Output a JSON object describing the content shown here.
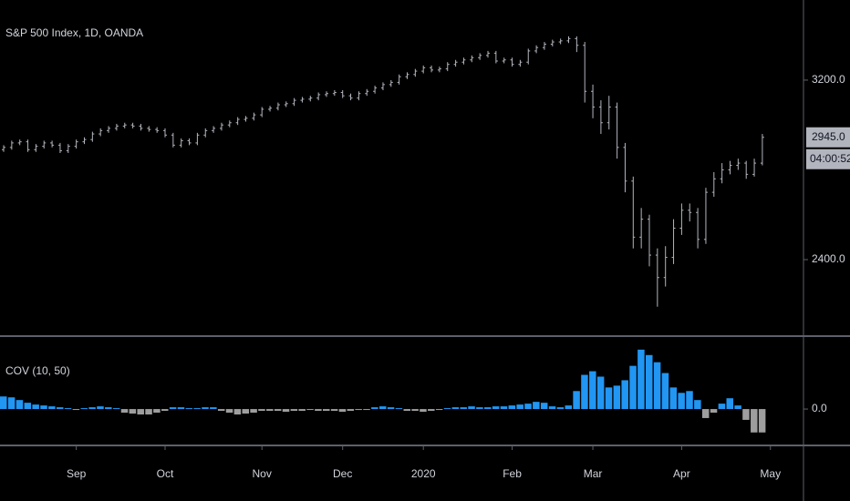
{
  "chart_data": [
    {
      "type": "ohlc",
      "title": "S&P 500 Index, 1D, OANDA",
      "color": "#b2b5be",
      "categories": [
        null,
        null,
        null,
        null,
        null,
        null,
        null,
        null,
        null,
        "Sep",
        null,
        null,
        null,
        null,
        null,
        null,
        null,
        null,
        null,
        null,
        "Oct",
        null,
        null,
        null,
        null,
        null,
        null,
        null,
        null,
        null,
        null,
        null,
        "Nov",
        null,
        null,
        null,
        null,
        null,
        null,
        null,
        null,
        null,
        "Dec",
        null,
        null,
        null,
        null,
        null,
        null,
        null,
        null,
        null,
        "2020",
        null,
        null,
        null,
        null,
        null,
        null,
        null,
        null,
        null,
        null,
        "Feb",
        null,
        null,
        null,
        null,
        null,
        null,
        null,
        null,
        null,
        "Mar",
        null,
        null,
        null,
        null,
        null,
        null,
        null,
        null,
        null,
        null,
        "Apr",
        null,
        null,
        null,
        null,
        null,
        null,
        null,
        null,
        null,
        null,
        "May"
      ],
      "open": [
        2890,
        2900,
        2920,
        2925,
        2890,
        2905,
        2920,
        2910,
        2885,
        2905,
        2925,
        2935,
        2960,
        2975,
        2985,
        2995,
        3000,
        2995,
        2985,
        2980,
        2975,
        2955,
        2910,
        2930,
        2920,
        2955,
        2975,
        2985,
        3000,
        3010,
        3025,
        3030,
        3045,
        3070,
        3075,
        3090,
        3095,
        3110,
        3115,
        3120,
        3135,
        3140,
        3145,
        3130,
        3120,
        3140,
        3150,
        3165,
        3180,
        3190,
        3215,
        3225,
        3240,
        3255,
        3245,
        3250,
        3270,
        3280,
        3290,
        3300,
        3310,
        3320,
        3285,
        3290,
        3270,
        3280,
        3330,
        3345,
        3360,
        3370,
        3375,
        3385,
        3355,
        3150,
        3080,
        3010,
        3080,
        2900,
        2750,
        2500,
        2580,
        2420,
        2320,
        2410,
        2540,
        2620,
        2610,
        2490,
        2700,
        2760,
        2800,
        2820,
        2830,
        2780,
        2830,
        null
      ],
      "high": [
        2910,
        2930,
        2935,
        2935,
        2915,
        2930,
        2930,
        2920,
        2915,
        2935,
        2945,
        2970,
        2985,
        2995,
        3005,
        3010,
        3010,
        3005,
        2995,
        2990,
        2985,
        2965,
        2940,
        2940,
        2965,
        2985,
        2995,
        3010,
        3020,
        3035,
        3040,
        3055,
        3080,
        3085,
        3100,
        3105,
        3120,
        3125,
        3130,
        3145,
        3150,
        3155,
        3155,
        3140,
        3150,
        3160,
        3175,
        3190,
        3200,
        3225,
        3235,
        3250,
        3265,
        3265,
        3260,
        3280,
        3290,
        3300,
        3310,
        3320,
        3330,
        3330,
        3300,
        3300,
        3290,
        3340,
        3355,
        3370,
        3380,
        3385,
        3395,
        3395,
        3370,
        3180,
        3110,
        3130,
        3100,
        2920,
        2770,
        2630,
        2600,
        2450,
        2460,
        2580,
        2650,
        2650,
        2630,
        2720,
        2790,
        2830,
        2840,
        2850,
        2840,
        2850,
        2960,
        null
      ],
      "low": [
        2880,
        2890,
        2910,
        2880,
        2880,
        2895,
        2900,
        2875,
        2875,
        2895,
        2915,
        2925,
        2950,
        2965,
        2975,
        2985,
        2985,
        2975,
        2970,
        2965,
        2945,
        2900,
        2900,
        2910,
        2910,
        2945,
        2965,
        2975,
        2990,
        3000,
        3015,
        3020,
        3035,
        3060,
        3065,
        3080,
        3085,
        3100,
        3105,
        3110,
        3125,
        3130,
        3120,
        3110,
        3110,
        3130,
        3140,
        3155,
        3170,
        3180,
        3205,
        3215,
        3230,
        3235,
        3235,
        3240,
        3260,
        3270,
        3280,
        3290,
        3300,
        3275,
        3275,
        3260,
        3260,
        3270,
        3320,
        3335,
        3350,
        3360,
        3365,
        3325,
        3100,
        3030,
        2960,
        2980,
        2850,
        2700,
        2450,
        2450,
        2370,
        2190,
        2280,
        2380,
        2510,
        2570,
        2450,
        2470,
        2680,
        2740,
        2780,
        2800,
        2760,
        2770,
        2820,
        null
      ],
      "close": [
        2900,
        2920,
        2925,
        2890,
        2905,
        2920,
        2910,
        2885,
        2905,
        2925,
        2935,
        2960,
        2975,
        2985,
        2995,
        3000,
        2995,
        2985,
        2980,
        2975,
        2955,
        2910,
        2930,
        2920,
        2955,
        2975,
        2985,
        3000,
        3010,
        3025,
        3030,
        3045,
        3070,
        3075,
        3090,
        3095,
        3110,
        3115,
        3120,
        3135,
        3140,
        3145,
        3130,
        3120,
        3140,
        3150,
        3165,
        3180,
        3190,
        3215,
        3225,
        3240,
        3255,
        3245,
        3250,
        3270,
        3280,
        3290,
        3300,
        3310,
        3320,
        3285,
        3290,
        3270,
        3280,
        3330,
        3345,
        3360,
        3370,
        3375,
        3385,
        3355,
        3150,
        3080,
        3010,
        3080,
        2900,
        2750,
        2500,
        2580,
        2420,
        2320,
        2410,
        2540,
        2620,
        2610,
        2490,
        2700,
        2760,
        2800,
        2820,
        2830,
        2780,
        2830,
        2945,
        null
      ],
      "ylim": [
        2063,
        3557
      ],
      "yticks": [
        {
          "value": 3200,
          "label": "3200.0"
        },
        {
          "value": 2400,
          "label": "2400.0"
        }
      ],
      "price_label": {
        "value": 2945,
        "label": "2945.0"
      },
      "countdown": "04:00:52"
    },
    {
      "type": "bar",
      "title": "COV (10, 50)",
      "positive_color": "#2196f3",
      "negative_color": "#9e9e9e",
      "values": [
        0.7,
        0.65,
        0.5,
        0.35,
        0.25,
        0.2,
        0.15,
        0.1,
        0.05,
        -0.05,
        0.05,
        0.1,
        0.15,
        0.1,
        0.05,
        -0.2,
        -0.25,
        -0.3,
        -0.3,
        -0.2,
        -0.1,
        0.1,
        0.1,
        0.05,
        0.05,
        0.1,
        0.1,
        -0.1,
        -0.2,
        -0.3,
        -0.25,
        -0.2,
        -0.1,
        -0.1,
        -0.1,
        -0.15,
        -0.1,
        -0.1,
        -0.05,
        -0.1,
        -0.1,
        -0.1,
        -0.15,
        -0.1,
        -0.05,
        -0.05,
        0.1,
        0.15,
        0.1,
        0.05,
        -0.1,
        -0.1,
        -0.15,
        -0.1,
        -0.05,
        0.05,
        0.1,
        0.1,
        0.15,
        0.1,
        0.1,
        0.15,
        0.15,
        0.2,
        0.25,
        0.3,
        0.4,
        0.35,
        0.15,
        0.1,
        0.2,
        1.0,
        1.9,
        2.1,
        1.8,
        1.2,
        1.3,
        1.6,
        2.4,
        3.3,
        3.0,
        2.6,
        2.0,
        1.2,
        0.9,
        1.0,
        0.5,
        -0.5,
        -0.2,
        0.3,
        0.6,
        0.2,
        -0.6,
        -1.3,
        -1.3,
        null
      ],
      "ylim": [
        -1.97,
        4
      ],
      "yticks": [
        {
          "value": 0,
          "label": "0.0"
        }
      ]
    }
  ]
}
